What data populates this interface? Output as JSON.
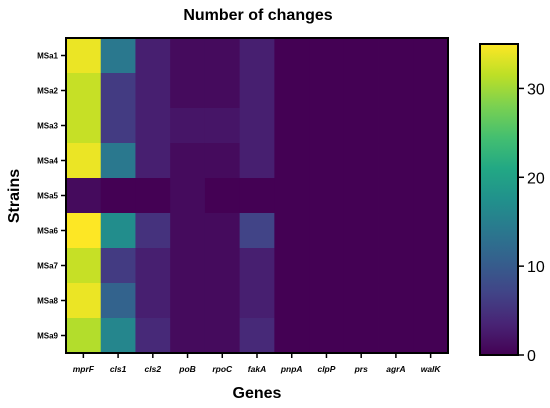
{
  "chart_data": {
    "type": "heatmap",
    "title": "Number of changes",
    "xlabel": "Genes",
    "ylabel": "Strains",
    "x_categories": [
      "mprF",
      "cls1",
      "cls2",
      "poB",
      "rpoC",
      "fakA",
      "pnpA",
      "clpP",
      "prs",
      "agrA",
      "walK"
    ],
    "y_categories": [
      "MSa1",
      "MSa2",
      "MSa3",
      "MSa4",
      "MSa5",
      "MSa6",
      "MSa7",
      "MSa8",
      "MSa9"
    ],
    "values": [
      [
        34,
        14,
        3,
        1,
        1,
        3,
        0,
        0,
        0,
        0,
        0
      ],
      [
        32,
        6,
        3,
        1,
        1,
        3,
        0,
        0,
        0,
        0,
        0
      ],
      [
        32,
        6,
        3,
        2,
        2,
        3,
        0,
        0,
        0,
        0,
        0
      ],
      [
        34,
        14,
        3,
        1,
        1,
        3,
        0,
        0,
        0,
        0,
        0
      ],
      [
        1,
        0,
        0,
        1,
        0,
        0,
        0,
        0,
        0,
        0,
        0
      ],
      [
        35,
        17,
        5,
        1,
        1,
        7,
        0,
        0,
        0,
        0,
        0
      ],
      [
        32,
        6,
        3,
        1,
        1,
        3,
        0,
        0,
        0,
        0,
        0
      ],
      [
        34,
        11,
        3,
        1,
        1,
        3,
        0,
        0,
        0,
        0,
        0
      ],
      [
        31,
        16,
        4,
        1,
        1,
        4,
        0,
        0,
        0,
        0,
        0
      ]
    ],
    "colorbar": {
      "colormap": "viridis",
      "range": [
        0,
        35
      ],
      "ticks": [
        0,
        10,
        20,
        30
      ]
    },
    "grid": false
  }
}
